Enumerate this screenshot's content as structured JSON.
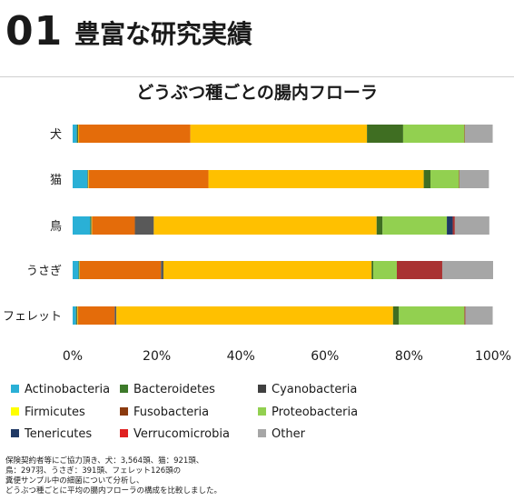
{
  "header": {
    "number": "01",
    "title": "豊富な研究実績"
  },
  "chart_data": {
    "type": "bar",
    "orientation": "horizontal",
    "stacked": true,
    "percent": true,
    "title": "どうぶつ種ごとの腸内フローラ",
    "categories": [
      "犬",
      "猫",
      "鳥",
      "うさぎ",
      "フェレット"
    ],
    "xlim": [
      0,
      100
    ],
    "xticks": [
      "0%",
      "20%",
      "40%",
      "60%",
      "80%",
      "100%"
    ],
    "grid": false,
    "legend_position": "bottom",
    "series": [
      {
        "name": "Actinobacteria",
        "color": "#2ab0d6",
        "values": [
          1.0,
          3.5,
          4.2,
          1.4,
          0.8
        ]
      },
      {
        "name": "Bacteroidetes",
        "color": "#3d7a2a",
        "values": [
          0.2,
          0.1,
          0.2,
          0.1,
          0.2
        ]
      },
      {
        "name": "Cyanobacteria",
        "color": "#4a4a4a",
        "values": [
          0.1,
          0.1,
          0.1,
          0.1,
          0.1
        ]
      },
      {
        "name": "Firmicutes",
        "color": "#ffff00",
        "values": [
          0.1,
          0.1,
          0.1,
          0.1,
          0.1
        ]
      },
      {
        "name": "Fusobacteria",
        "color": "#e46c0a",
        "values": [
          26.6,
          28.5,
          10.2,
          19.3,
          8.8
        ]
      },
      {
        "name": "Tenericutes",
        "color": "#1f3864",
        "values": [
          0.0,
          0.0,
          0.0,
          0.0,
          0.0
        ]
      },
      {
        "name": "Other",
        "color": "#595959",
        "values": [
          0.0,
          0.0,
          4.5,
          0.6,
          0.4
        ]
      },
      {
        "name": "Firmicutes2",
        "color": "#ffc000",
        "values": [
          42.0,
          51.2,
          53.0,
          49.5,
          65.8
        ]
      },
      {
        "name": "Bacteroidetes2",
        "color": "#3f6e22",
        "values": [
          8.6,
          1.6,
          1.4,
          0.4,
          1.4
        ]
      },
      {
        "name": "Proteobacteria",
        "color": "#92d050",
        "values": [
          14.6,
          6.8,
          15.3,
          5.6,
          15.6
        ]
      },
      {
        "name": "Tenericutes2",
        "color": "#1f3864",
        "values": [
          0.0,
          0.0,
          1.4,
          0.0,
          0.0
        ]
      },
      {
        "name": "Verrucomicrobia",
        "color": "#a93232",
        "values": [
          0.1,
          0.1,
          0.5,
          10.8,
          0.2
        ]
      },
      {
        "name": "Other2",
        "color": "#a6a6a6",
        "values": [
          6.6,
          7.0,
          8.2,
          12.1,
          6.5
        ]
      }
    ],
    "legend": [
      {
        "label": "Actinobacteria",
        "color": "#2ab0d6"
      },
      {
        "label": "Bacteroidetes",
        "color": "#3d7a2a"
      },
      {
        "label": "Cyanobacteria",
        "color": "#404040"
      },
      {
        "label": "Firmicutes",
        "color": "#ffff00"
      },
      {
        "label": "Fusobacteria",
        "color": "#8b3a0e"
      },
      {
        "label": "Proteobacteria",
        "color": "#92d050"
      },
      {
        "label": "Tenericutes",
        "color": "#1f3864"
      },
      {
        "label": "Verrucomicrobia",
        "color": "#e02020"
      },
      {
        "label": "Other",
        "color": "#a6a6a6"
      }
    ]
  },
  "note": [
    "保険契約者等にご協力頂き、犬：3,564頭、猫：921頭、",
    "鳥：297羽、うさぎ：391頭、フェレット126頭の",
    "糞便サンプル中の細菌について分析し、",
    "どうぶつ種ごとに平均の腸内フローラの構成を比較しました。"
  ]
}
